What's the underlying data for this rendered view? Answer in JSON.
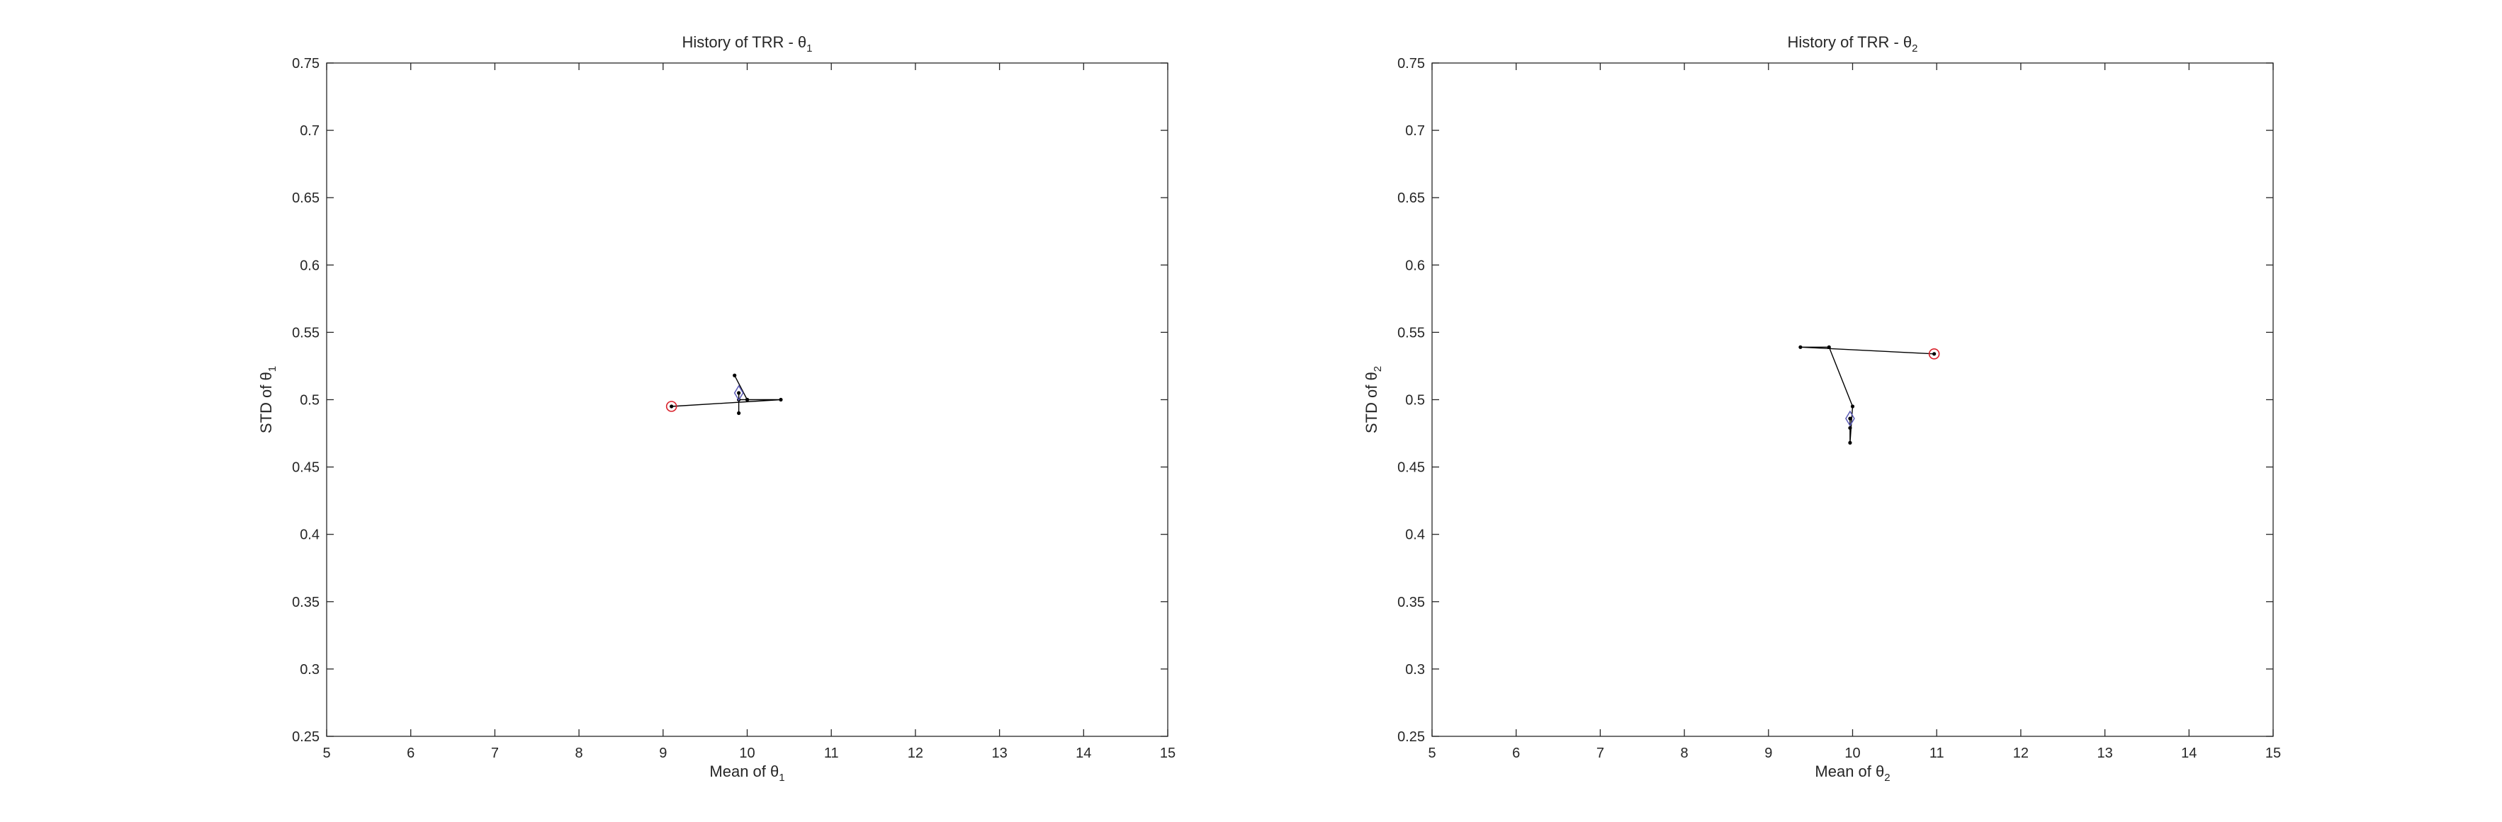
{
  "chart_data": [
    {
      "type": "line",
      "title": "History of TRR - θ",
      "title_sub": "1",
      "xlabel": "Mean of θ",
      "xlabel_sub": "1",
      "ylabel": "STD of θ",
      "ylabel_sub": "1",
      "xlim": [
        5,
        15
      ],
      "ylim": [
        0.25,
        0.75
      ],
      "xticks": [
        5,
        6,
        7,
        8,
        9,
        10,
        11,
        12,
        13,
        14,
        15
      ],
      "yticks": [
        0.25,
        0.3,
        0.35,
        0.4,
        0.45,
        0.5,
        0.55,
        0.6,
        0.65,
        0.7,
        0.75
      ],
      "grid": false,
      "line_color": "#000000",
      "start_marker_color": "#d9212b",
      "end_marker_color": "#5b5bb5",
      "path": [
        {
          "x": 9.1,
          "y": 0.495
        },
        {
          "x": 10.4,
          "y": 0.5
        },
        {
          "x": 10.0,
          "y": 0.5
        },
        {
          "x": 9.85,
          "y": 0.518
        },
        {
          "x": 10.0,
          "y": 0.5
        },
        {
          "x": 9.9,
          "y": 0.5
        },
        {
          "x": 9.9,
          "y": 0.49
        },
        {
          "x": 9.9,
          "y": 0.505
        }
      ],
      "start": {
        "x": 9.1,
        "y": 0.495
      },
      "end": {
        "x": 9.9,
        "y": 0.505
      }
    },
    {
      "type": "line",
      "title": "History of TRR - θ",
      "title_sub": "2",
      "xlabel": "Mean of θ",
      "xlabel_sub": "2",
      "ylabel": "STD of θ",
      "ylabel_sub": "2",
      "xlim": [
        5,
        15
      ],
      "ylim": [
        0.25,
        0.75
      ],
      "xticks": [
        5,
        6,
        7,
        8,
        9,
        10,
        11,
        12,
        13,
        14,
        15
      ],
      "yticks": [
        0.25,
        0.3,
        0.35,
        0.4,
        0.45,
        0.5,
        0.55,
        0.6,
        0.65,
        0.7,
        0.75
      ],
      "grid": false,
      "line_color": "#000000",
      "start_marker_color": "#d9212b",
      "end_marker_color": "#5b5bb5",
      "path": [
        {
          "x": 10.97,
          "y": 0.534
        },
        {
          "x": 9.38,
          "y": 0.539
        },
        {
          "x": 9.72,
          "y": 0.539
        },
        {
          "x": 10.0,
          "y": 0.495
        },
        {
          "x": 9.97,
          "y": 0.468
        },
        {
          "x": 9.97,
          "y": 0.479
        },
        {
          "x": 9.97,
          "y": 0.486
        }
      ],
      "start": {
        "x": 10.97,
        "y": 0.534
      },
      "end": {
        "x": 9.97,
        "y": 0.486
      }
    }
  ]
}
